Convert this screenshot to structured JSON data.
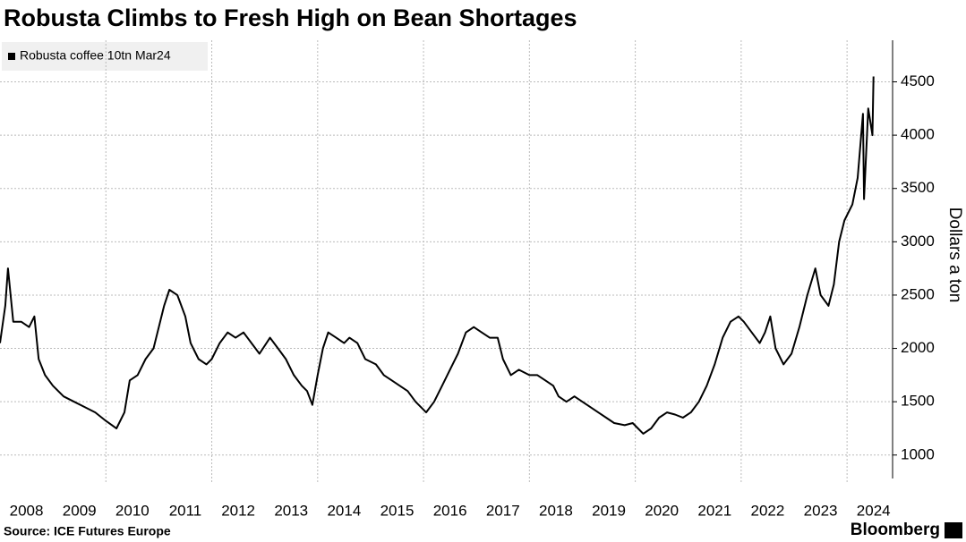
{
  "chart_data": {
    "type": "line",
    "title": "Robusta Climbs to Fresh High on Bean Shortages",
    "y_label": "Dollars a ton",
    "source": "Source: ICE Futures Europe",
    "brand": "Bloomberg",
    "legend": "top-left",
    "grid": true,
    "xlim": [
      2008,
      2024.86
    ],
    "xticks": [
      {
        "value": 2008.5,
        "label": "2008"
      },
      {
        "value": 2009.5,
        "label": "2009"
      },
      {
        "value": 2010.5,
        "label": "2010"
      },
      {
        "value": 2011.5,
        "label": "2011"
      },
      {
        "value": 2012.5,
        "label": "2012"
      },
      {
        "value": 2013.5,
        "label": "2013"
      },
      {
        "value": 2014.5,
        "label": "2014"
      },
      {
        "value": 2015.5,
        "label": "2015"
      },
      {
        "value": 2016.5,
        "label": "2016"
      },
      {
        "value": 2017.5,
        "label": "2017"
      },
      {
        "value": 2018.5,
        "label": "2018"
      },
      {
        "value": 2019.5,
        "label": "2019"
      },
      {
        "value": 2020.5,
        "label": "2020"
      },
      {
        "value": 2021.5,
        "label": "2021"
      },
      {
        "value": 2022.5,
        "label": "2022"
      },
      {
        "value": 2023.5,
        "label": "2023"
      },
      {
        "value": 2024.5,
        "label": "2024"
      }
    ],
    "xgrid": [
      2010,
      2012,
      2014,
      2016,
      2018,
      2020,
      2022,
      2024
    ],
    "ylim": [
      780,
      4890
    ],
    "yticks": [
      1000,
      1500,
      2000,
      2500,
      3000,
      3500,
      4000,
      4500
    ],
    "x": [
      2008.0,
      2008.1,
      2008.15,
      2008.25,
      2008.4,
      2008.55,
      2008.65,
      2008.73,
      2008.85,
      2009.0,
      2009.2,
      2009.4,
      2009.6,
      2009.8,
      2010.0,
      2010.2,
      2010.35,
      2010.45,
      2010.6,
      2010.75,
      2010.9,
      2011.0,
      2011.1,
      2011.2,
      2011.35,
      2011.5,
      2011.6,
      2011.75,
      2011.9,
      2012.0,
      2012.15,
      2012.3,
      2012.45,
      2012.6,
      2012.75,
      2012.9,
      2013.1,
      2013.25,
      2013.4,
      2013.55,
      2013.7,
      2013.8,
      2013.9,
      2014.0,
      2014.1,
      2014.2,
      2014.35,
      2014.5,
      2014.6,
      2014.75,
      2014.9,
      2015.1,
      2015.25,
      2015.4,
      2015.55,
      2015.7,
      2015.85,
      2016.05,
      2016.2,
      2016.35,
      2016.5,
      2016.65,
      2016.8,
      2016.95,
      2017.1,
      2017.25,
      2017.4,
      2017.5,
      2017.65,
      2017.8,
      2018.0,
      2018.15,
      2018.3,
      2018.45,
      2018.55,
      2018.7,
      2018.85,
      2019.0,
      2019.15,
      2019.3,
      2019.45,
      2019.6,
      2019.8,
      2019.95,
      2020.05,
      2020.15,
      2020.3,
      2020.45,
      2020.6,
      2020.75,
      2020.9,
      2021.05,
      2021.2,
      2021.35,
      2021.5,
      2021.65,
      2021.8,
      2021.95,
      2022.05,
      2022.2,
      2022.35,
      2022.45,
      2022.55,
      2022.65,
      2022.8,
      2022.95,
      2023.1,
      2023.25,
      2023.4,
      2023.5,
      2023.65,
      2023.75,
      2023.85,
      2023.95,
      2024.1,
      2024.2,
      2024.3,
      2024.32,
      2024.4,
      2024.48,
      2024.5
    ],
    "series": [
      {
        "name": "Robusta coffee 10tn Mar24",
        "color": "#000000",
        "values": [
          2050,
          2400,
          2750,
          2250,
          2250,
          2200,
          2300,
          1900,
          1750,
          1650,
          1550,
          1500,
          1450,
          1400,
          1320,
          1250,
          1400,
          1700,
          1750,
          1900,
          2000,
          2200,
          2400,
          2550,
          2500,
          2300,
          2050,
          1900,
          1850,
          1900,
          2050,
          2150,
          2100,
          2150,
          2050,
          1950,
          2100,
          2000,
          1900,
          1750,
          1650,
          1600,
          1470,
          1750,
          2000,
          2150,
          2100,
          2050,
          2100,
          2050,
          1900,
          1850,
          1750,
          1700,
          1650,
          1600,
          1500,
          1400,
          1500,
          1650,
          1800,
          1950,
          2150,
          2200,
          2150,
          2100,
          2100,
          1900,
          1750,
          1800,
          1750,
          1750,
          1700,
          1650,
          1550,
          1500,
          1550,
          1500,
          1450,
          1400,
          1350,
          1300,
          1280,
          1300,
          1250,
          1200,
          1250,
          1350,
          1400,
          1380,
          1350,
          1400,
          1500,
          1650,
          1850,
          2100,
          2250,
          2300,
          2250,
          2150,
          2050,
          2150,
          2300,
          2000,
          1850,
          1950,
          2200,
          2500,
          2750,
          2500,
          2400,
          2600,
          3000,
          3200,
          3350,
          3600,
          4200,
          3400,
          4250,
          4000,
          4550
        ]
      }
    ]
  }
}
